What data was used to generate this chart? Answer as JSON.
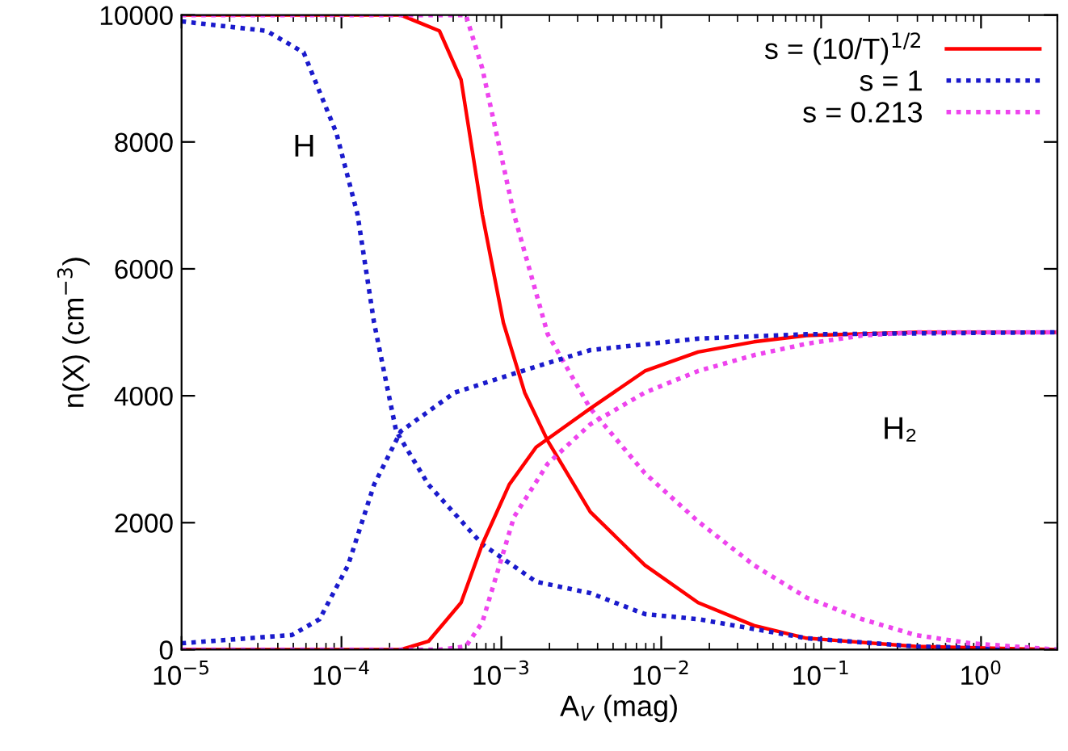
{
  "chart_data": {
    "type": "line",
    "xlabel": "A$_{V}$ (mag)",
    "ylabel": "n(X) (cm$^{−3}$)",
    "log": "x",
    "legend": "top right",
    "grid": false,
    "marker": "none",
    "xlim": [
      1e-05,
      3
    ],
    "xticks": [
      {
        "value": 1e-05,
        "label": "10$^{−5}$"
      },
      {
        "value": 0.0001,
        "label": "10$^{−4}$"
      },
      {
        "value": 0.001,
        "label": "10$^{−3}$"
      },
      {
        "value": 0.01,
        "label": "10$^{−2}$"
      },
      {
        "value": 0.1,
        "label": "10$^{−1}$"
      },
      {
        "value": 1,
        "label": "10$^{0}$"
      }
    ],
    "ylim": [
      0,
      10000
    ],
    "yticks": [
      0,
      2000,
      4000,
      6000,
      8000,
      10000
    ],
    "series": [
      {
        "name": "s = (10/T)$^{1/2}$",
        "color": "#ff0000",
        "line_style": "solid",
        "x": [
          1e-05,
          0.000235,
          0.00041,
          0.00056,
          0.00076,
          0.00103,
          0.0014,
          0.00195,
          0.0036,
          0.0079,
          0.017,
          0.038,
          0.081,
          0.39,
          3
        ],
        "values": [
          10000,
          10000,
          9750,
          8980,
          6860,
          5150,
          4050,
          3290,
          2170,
          1330,
          740,
          380,
          180,
          50,
          0
        ]
      },
      {
        "name": "s = 1",
        "color": "#1a1acc",
        "line_style": "dotted",
        "x": [
          1e-05,
          3.4e-05,
          5.8e-05,
          9.3e-05,
          0.000126,
          0.00016,
          0.00022,
          0.00035,
          0.00076,
          0.00165,
          0.0036,
          0.0079,
          0.017,
          0.081,
          0.39,
          3
        ],
        "values": [
          9900,
          9750,
          9410,
          8140,
          6860,
          5150,
          3440,
          2600,
          1660,
          1070,
          890,
          560,
          480,
          180,
          50,
          0
        ]
      },
      {
        "name": "s = 0.213",
        "color": "#ee44ee",
        "line_style": "dotted",
        "x": [
          1e-05,
          0.0006,
          0.00076,
          0.0012,
          0.00195,
          0.0036,
          0.0079,
          0.017,
          0.038,
          0.081,
          0.18,
          0.39,
          0.85,
          3
        ],
        "values": [
          10000,
          10000,
          9160,
          6860,
          4970,
          3800,
          2780,
          2020,
          1330,
          820,
          480,
          230,
          100,
          0
        ]
      },
      {
        "color": "#ff0000",
        "line_style": "solid",
        "x": [
          1e-05,
          0.000235,
          0.00035,
          0.00056,
          0.00076,
          0.00112,
          0.00165,
          0.0036,
          0.0079,
          0.017,
          0.038,
          0.081,
          0.39,
          3
        ],
        "values": [
          0,
          0,
          130,
          740,
          1660,
          2600,
          3190,
          3800,
          4390,
          4690,
          4850,
          4950,
          5000,
          5000
        ]
      },
      {
        "color": "#1a1acc",
        "line_style": "dotted",
        "x": [
          1e-05,
          4.9e-05,
          7.3e-05,
          0.00011,
          0.00016,
          0.000235,
          0.00051,
          0.00165,
          0.0036,
          0.017,
          0.081,
          3
        ],
        "values": [
          100,
          230,
          480,
          1330,
          2600,
          3440,
          4050,
          4460,
          4720,
          4900,
          4970,
          5000
        ]
      },
      {
        "color": "#ee44ee",
        "line_style": "dotted",
        "x": [
          1e-05,
          0.00041,
          0.0006,
          0.00076,
          0.0012,
          0.00195,
          0.0036,
          0.0079,
          0.017,
          0.038,
          0.081,
          0.18,
          0.39,
          3
        ],
        "values": [
          0,
          0,
          50,
          430,
          2090,
          2930,
          3550,
          4050,
          4390,
          4640,
          4820,
          4950,
          5000,
          5000
        ]
      }
    ],
    "annotations": [
      "H",
      "H₂"
    ]
  }
}
